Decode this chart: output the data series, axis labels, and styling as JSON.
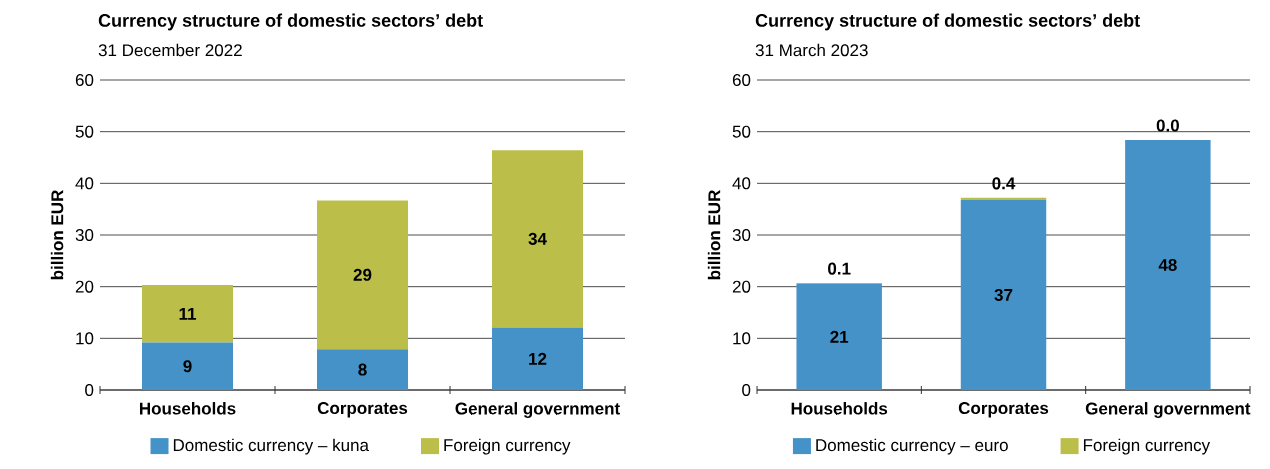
{
  "chart_data": [
    {
      "type": "bar",
      "title": "Currency structure of domestic sectors’ debt",
      "subtitle": "31 December 2022",
      "ylabel": "billion EUR",
      "categories": [
        "Households",
        "Corporates",
        "General government"
      ],
      "stacked": true,
      "series": [
        {
          "name": "Domestic currency – kuna",
          "color": "#4592c8",
          "values": [
            9.2,
            7.9,
            12.1
          ],
          "value_labels": [
            "9",
            "8",
            "12"
          ]
        },
        {
          "name": "Foreign currency",
          "color": "#bbbf4a",
          "values": [
            11.1,
            28.8,
            34.3
          ],
          "value_labels": [
            "11",
            "29",
            "34"
          ]
        }
      ],
      "ylim": [
        0,
        60
      ],
      "yticks": [
        0,
        10,
        20,
        30,
        40,
        50,
        60
      ],
      "grid": "y",
      "legend": "bottom"
    },
    {
      "type": "bar",
      "title": "Currency structure of domestic sectors’ debt",
      "subtitle": "31 March 2023",
      "ylabel": "billion EUR",
      "categories": [
        "Households",
        "Corporates",
        "General government"
      ],
      "stacked": true,
      "series": [
        {
          "name": "Domestic currency – euro",
          "color": "#4592c8",
          "values": [
            20.6,
            36.8,
            48.4
          ],
          "value_labels": [
            "21",
            "37",
            "48"
          ]
        },
        {
          "name": "Foreign currency",
          "color": "#bbbf4a",
          "values": [
            0.1,
            0.4,
            0.0
          ],
          "value_labels": [
            "0.1",
            "0.4",
            "0.0"
          ]
        }
      ],
      "ylim": [
        0,
        60
      ],
      "yticks": [
        0,
        10,
        20,
        30,
        40,
        50,
        60
      ],
      "grid": "y",
      "legend": "bottom"
    }
  ]
}
